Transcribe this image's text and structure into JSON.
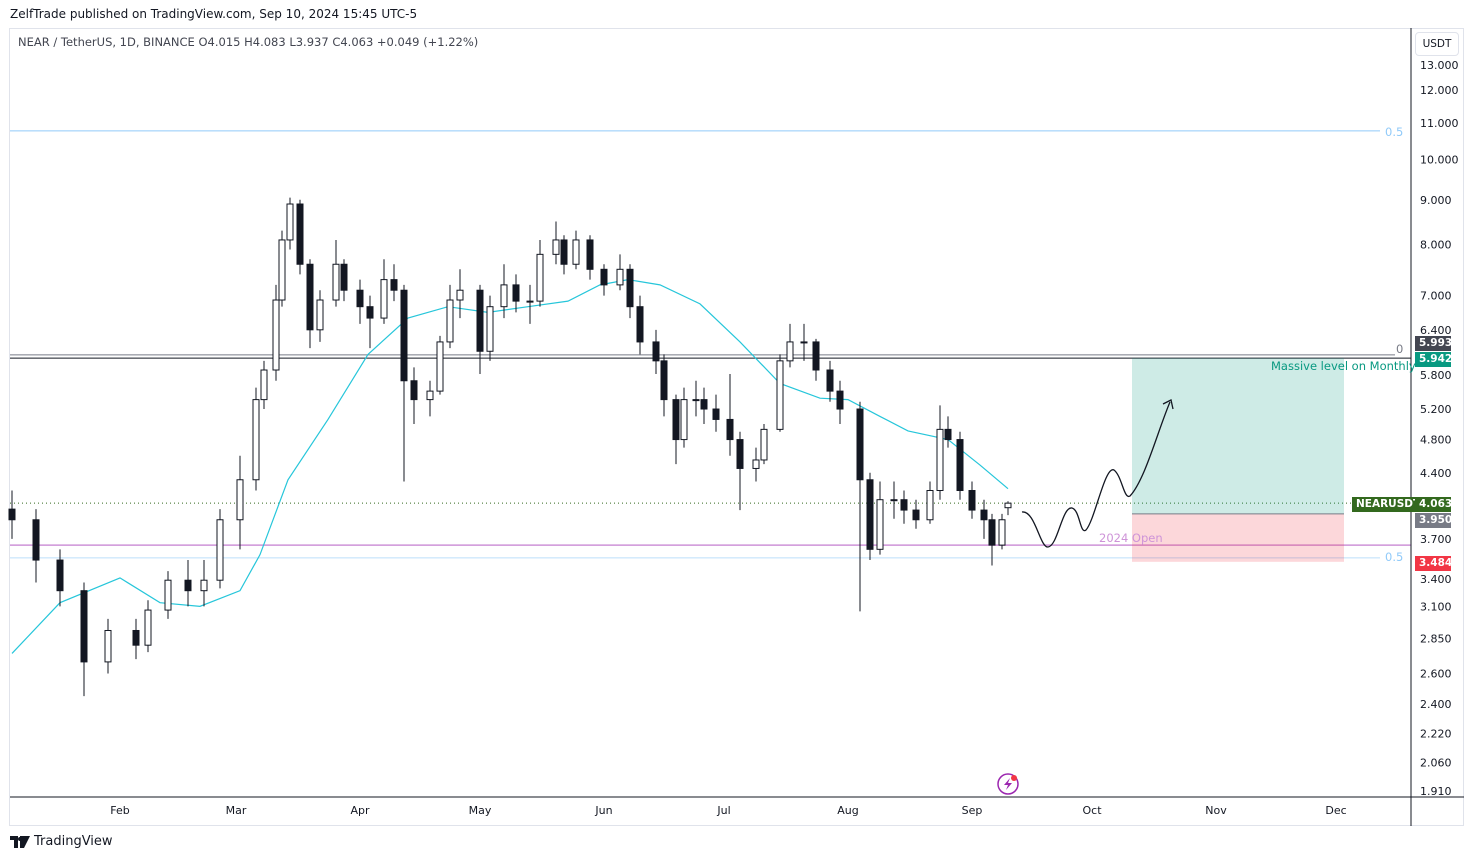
{
  "header": {
    "published": "ZelfTrade published on TradingView.com, Sep 10, 2024 15:45 UTC-5",
    "legend": "NEAR / TetherUS, 1D, BINANCE  O4.015  H4.083  L3.937  C4.063  +0.049 (+1.22%)"
  },
  "currency_button": "USDT",
  "footer": {
    "brand": "TradingView"
  },
  "colors": {
    "up": "#ffffff",
    "down": "#131722",
    "ma": "#26c6da",
    "fib": "#90caf9",
    "open_line": "#ce93d8",
    "target": "#089981",
    "stop": "#f23645",
    "price": "#33691e"
  },
  "chart_data": {
    "type": "candlestick",
    "title": "NEAR / TetherUS, 1D, BINANCE",
    "scale": "log",
    "ylim": [
      1.85,
      13.3
    ],
    "x_unit": "day of year 2024",
    "xlim": [
      1,
      350
    ],
    "y_ticks": [
      "13.000",
      "12.000",
      "11.000",
      "10.000",
      "9.000",
      "8.000",
      "7.000",
      "6.400",
      "5.800",
      "5.200",
      "4.800",
      "4.400",
      "3.700",
      "3.400",
      "3.100",
      "2.850",
      "2.600",
      "2.400",
      "2.220",
      "2.060",
      "1.910"
    ],
    "x_ticks": [
      {
        "label": "Feb",
        "t": 31
      },
      {
        "label": "Mar",
        "t": 60
      },
      {
        "label": "Apr",
        "t": 91
      },
      {
        "label": "May",
        "t": 121
      },
      {
        "label": "Jun",
        "t": 152
      },
      {
        "label": "Jul",
        "t": 182
      },
      {
        "label": "Aug",
        "t": 213
      },
      {
        "label": "Sep",
        "t": 244
      },
      {
        "label": "Oct",
        "t": 274
      },
      {
        "label": "Nov",
        "t": 305
      },
      {
        "label": "Dec",
        "t": 335
      }
    ],
    "candles_t_o_h_l_c": [
      [
        4,
        4.0,
        4.2,
        3.7,
        3.89
      ],
      [
        10,
        3.89,
        4.0,
        3.3,
        3.5
      ],
      [
        16,
        3.5,
        3.6,
        3.1,
        3.23
      ],
      [
        22,
        3.23,
        3.3,
        2.45,
        2.68
      ],
      [
        28,
        2.68,
        3.0,
        2.6,
        2.91
      ],
      [
        35,
        2.91,
        3.0,
        2.7,
        2.8
      ],
      [
        38,
        2.8,
        3.15,
        2.75,
        3.07
      ],
      [
        43,
        3.07,
        3.4,
        3.0,
        3.32
      ],
      [
        48,
        3.32,
        3.5,
        3.1,
        3.23
      ],
      [
        52,
        3.23,
        3.5,
        3.1,
        3.32
      ],
      [
        56,
        3.32,
        4.0,
        3.25,
        3.89
      ],
      [
        61,
        3.89,
        4.6,
        3.6,
        4.32
      ],
      [
        65,
        4.32,
        5.5,
        4.2,
        5.33
      ],
      [
        67,
        5.33,
        5.9,
        5.2,
        5.76
      ],
      [
        70,
        5.76,
        7.2,
        5.6,
        6.92
      ],
      [
        71.5,
        6.92,
        8.3,
        6.8,
        8.1
      ],
      [
        73.5,
        8.1,
        9.05,
        7.9,
        8.9
      ],
      [
        76,
        8.9,
        9.0,
        7.4,
        7.6
      ],
      [
        78.5,
        7.6,
        7.7,
        6.1,
        6.4
      ],
      [
        81,
        6.4,
        7.1,
        6.2,
        6.92
      ],
      [
        85,
        6.92,
        8.1,
        6.8,
        7.6
      ],
      [
        87,
        7.6,
        7.7,
        6.9,
        7.1
      ],
      [
        91,
        7.1,
        7.3,
        6.5,
        6.8
      ],
      [
        93.5,
        6.8,
        7.0,
        6.1,
        6.6
      ],
      [
        97,
        6.6,
        7.7,
        6.5,
        7.3
      ],
      [
        99.5,
        7.3,
        7.6,
        6.9,
        7.1
      ],
      [
        102,
        7.1,
        7.2,
        4.3,
        5.6
      ],
      [
        104.5,
        5.6,
        5.8,
        5.0,
        5.33
      ],
      [
        108.5,
        5.33,
        5.6,
        5.1,
        5.45
      ],
      [
        111,
        5.45,
        6.3,
        5.4,
        6.2
      ],
      [
        113.5,
        6.2,
        7.2,
        6.1,
        6.92
      ],
      [
        116,
        6.92,
        7.5,
        6.6,
        7.1
      ],
      [
        121,
        7.1,
        7.2,
        5.7,
        6.05
      ],
      [
        123.5,
        6.05,
        7.0,
        5.9,
        6.8
      ],
      [
        127,
        6.8,
        7.6,
        6.6,
        7.2
      ],
      [
        130,
        7.2,
        7.4,
        6.7,
        6.9
      ],
      [
        133.5,
        6.9,
        7.2,
        6.5,
        6.9
      ],
      [
        136,
        6.9,
        8.1,
        6.8,
        7.8
      ],
      [
        140,
        7.8,
        8.5,
        7.6,
        8.1
      ],
      [
        142,
        8.1,
        8.2,
        7.4,
        7.6
      ],
      [
        145,
        7.6,
        8.3,
        7.5,
        8.1
      ],
      [
        148.5,
        8.1,
        8.2,
        7.3,
        7.5
      ],
      [
        152,
        7.5,
        7.6,
        7.0,
        7.2
      ],
      [
        156,
        7.2,
        7.8,
        7.1,
        7.5
      ],
      [
        158.5,
        7.5,
        7.6,
        6.6,
        6.8
      ],
      [
        161,
        6.8,
        7.0,
        6.0,
        6.2
      ],
      [
        165,
        6.2,
        6.4,
        5.7,
        5.9
      ],
      [
        167,
        5.9,
        6.0,
        5.1,
        5.33
      ],
      [
        170,
        5.33,
        5.4,
        4.5,
        4.8
      ],
      [
        172,
        4.8,
        5.5,
        4.7,
        5.33
      ],
      [
        175,
        5.33,
        5.6,
        5.1,
        5.33
      ],
      [
        177,
        5.33,
        5.5,
        5.0,
        5.2
      ],
      [
        180,
        5.2,
        5.4,
        4.9,
        5.06
      ],
      [
        183.5,
        5.06,
        5.7,
        4.6,
        4.8
      ],
      [
        186,
        4.8,
        4.9,
        3.99,
        4.45
      ],
      [
        190,
        4.45,
        4.7,
        4.3,
        4.55
      ],
      [
        192,
        4.55,
        5.0,
        4.5,
        4.93
      ],
      [
        196,
        4.93,
        6.0,
        4.9,
        5.9
      ],
      [
        198.5,
        5.9,
        6.5,
        5.8,
        6.2
      ],
      [
        202,
        6.2,
        6.5,
        5.9,
        6.2
      ],
      [
        205,
        6.2,
        6.25,
        5.6,
        5.76
      ],
      [
        208.5,
        5.76,
        5.9,
        5.3,
        5.45
      ],
      [
        211,
        5.45,
        5.6,
        5.0,
        5.2
      ],
      [
        216,
        5.2,
        5.3,
        3.06,
        4.32
      ],
      [
        218.5,
        4.32,
        4.4,
        3.5,
        3.6
      ],
      [
        221,
        3.6,
        4.3,
        3.55,
        4.1
      ],
      [
        224.5,
        4.1,
        4.3,
        3.9,
        4.1
      ],
      [
        227,
        4.1,
        4.2,
        3.85,
        3.99
      ],
      [
        230,
        3.99,
        4.1,
        3.8,
        3.89
      ],
      [
        233.5,
        3.89,
        4.3,
        3.85,
        4.2
      ],
      [
        236,
        4.2,
        5.25,
        4.1,
        4.93
      ],
      [
        238,
        4.93,
        5.1,
        4.7,
        4.8
      ],
      [
        241,
        4.8,
        4.9,
        4.1,
        4.2
      ],
      [
        244,
        4.2,
        4.3,
        3.9,
        3.99
      ],
      [
        247,
        3.99,
        4.1,
        3.7,
        3.89
      ],
      [
        249,
        3.89,
        3.95,
        3.45,
        3.64
      ],
      [
        251.5,
        3.64,
        3.95,
        3.6,
        3.89
      ],
      [
        253,
        4.015,
        4.083,
        3.937,
        4.063
      ]
    ],
    "moving_average": [
      [
        4,
        2.74
      ],
      [
        16,
        3.13
      ],
      [
        31,
        3.34
      ],
      [
        41,
        3.13
      ],
      [
        51,
        3.1
      ],
      [
        61,
        3.23
      ],
      [
        66,
        3.55
      ],
      [
        73,
        4.32
      ],
      [
        83,
        5.06
      ],
      [
        93,
        6.0
      ],
      [
        103,
        6.6
      ],
      [
        113,
        6.8
      ],
      [
        123,
        6.7
      ],
      [
        133,
        6.8
      ],
      [
        143,
        6.9
      ],
      [
        151,
        7.2
      ],
      [
        158,
        7.3
      ],
      [
        166,
        7.2
      ],
      [
        176,
        6.85
      ],
      [
        186,
        6.2
      ],
      [
        196,
        5.56
      ],
      [
        206,
        5.35
      ],
      [
        213,
        5.33
      ],
      [
        221,
        5.1
      ],
      [
        228,
        4.91
      ],
      [
        238,
        4.8
      ],
      [
        246,
        4.49
      ],
      [
        253,
        4.22
      ]
    ],
    "levels": [
      {
        "name": "fib-0.5-upper",
        "label": "0.5",
        "price": 10.78
      },
      {
        "name": "fib-0",
        "label": "0",
        "price": 5.993
      },
      {
        "name": "monthly-level",
        "price": 5.942
      },
      {
        "name": "2024-open",
        "label": "2024 Open",
        "price": 3.64
      },
      {
        "name": "fib-0.5-lower",
        "label": "0.5",
        "price": 3.52
      }
    ],
    "position": {
      "type": "long",
      "t_start": 284,
      "t_end": 337,
      "entry": 3.95,
      "target": 5.942,
      "stop": 3.484
    },
    "annotations": {
      "monthly": "Massive level on Monthly",
      "open": "2024 Open"
    },
    "price_tags": {
      "symbol": "NEARUSDT",
      "last": "4.063",
      "entry": "3.950",
      "target": "5.942",
      "stop": "3.484",
      "fib0": "5.993"
    }
  }
}
